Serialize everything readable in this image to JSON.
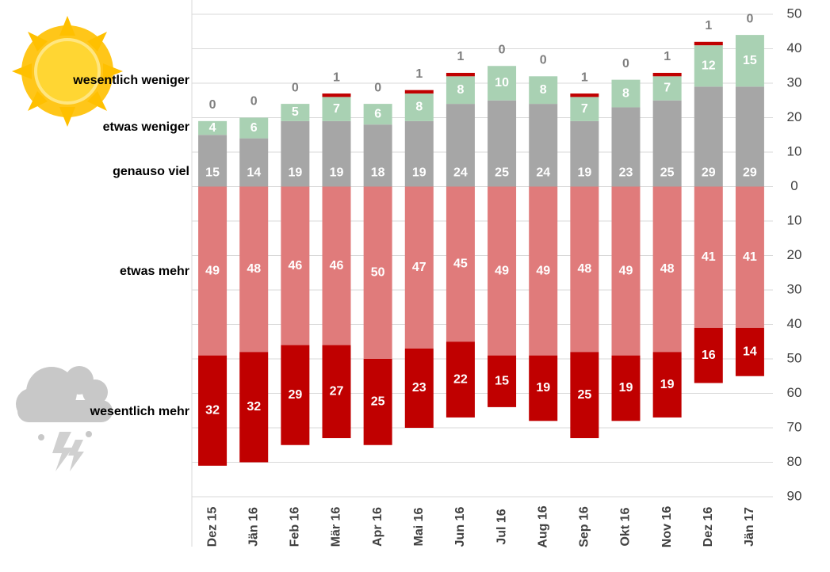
{
  "chart_data": {
    "type": "diverging-stacked-bar",
    "categories": [
      "Dez 15",
      "Jän 16",
      "Feb 16",
      "Mär 16",
      "Apr 16",
      "Mai 16",
      "Jun 16",
      "Jul 16",
      "Aug 16",
      "Sep 16",
      "Okt 16",
      "Nov 16",
      "Dez 16",
      "Jän 17"
    ],
    "series": [
      {
        "name": "genauso viel",
        "color": "#a6a6a6",
        "values": [
          15,
          14,
          19,
          19,
          18,
          19,
          24,
          25,
          24,
          19,
          23,
          25,
          29,
          29
        ]
      },
      {
        "name": "etwas weniger",
        "color": "#a9d1b3",
        "values": [
          4,
          6,
          5,
          7,
          6,
          8,
          8,
          10,
          8,
          7,
          8,
          7,
          12,
          15
        ]
      },
      {
        "name": "wesentlich weniger",
        "color": "#c00000",
        "values": [
          0,
          0,
          0,
          1,
          0,
          1,
          1,
          0,
          0,
          1,
          0,
          1,
          1,
          0
        ]
      },
      {
        "name": "etwas mehr",
        "color": "#e07b7b",
        "values": [
          -49,
          -48,
          -46,
          -46,
          -50,
          -47,
          -45,
          -49,
          -49,
          -48,
          -49,
          -48,
          -41,
          -41
        ],
        "value_labels": [
          "49",
          "48",
          "46",
          "46",
          "50",
          "47",
          "45",
          "49",
          "49",
          "48",
          "49",
          "48",
          "41",
          "41"
        ]
      },
      {
        "name": "wesentlich mehr",
        "color": "#c00000",
        "values": [
          -32,
          -32,
          -29,
          -27,
          -25,
          -23,
          -22,
          -15,
          -19,
          -25,
          -19,
          -19,
          -16,
          -14
        ],
        "value_labels": [
          "32",
          "32",
          "29",
          "27",
          "25",
          "23",
          "22",
          "15",
          "19",
          "25",
          "19",
          "19",
          "16",
          "14"
        ]
      }
    ],
    "ylim": [
      -90,
      50
    ],
    "yticks": [
      50,
      40,
      30,
      20,
      10,
      0,
      {
        "value": -10,
        "label": "10"
      },
      {
        "value": -20,
        "label": "20"
      },
      {
        "value": -30,
        "label": "30"
      },
      {
        "value": -40,
        "label": "40"
      },
      {
        "value": -50,
        "label": "50"
      },
      {
        "value": -60,
        "label": "60"
      },
      {
        "value": -70,
        "label": "70"
      },
      {
        "value": -80,
        "label": "80"
      },
      {
        "value": -90,
        "label": "90"
      }
    ],
    "grid": true
  }
}
